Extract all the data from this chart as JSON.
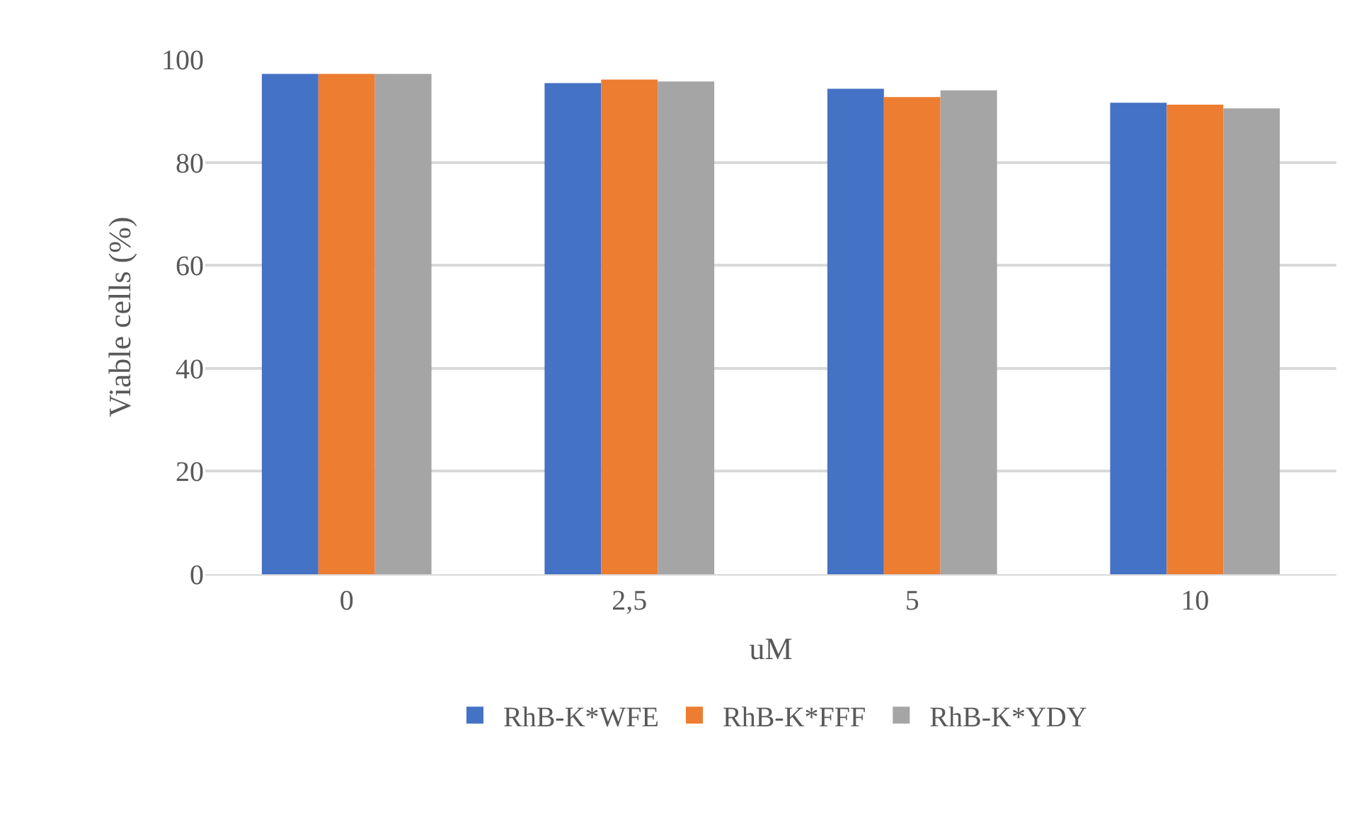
{
  "chart_data": {
    "type": "bar",
    "xlabel": "uM",
    "ylabel": "Viable cells (%)",
    "categories": [
      "0",
      "2,5",
      "5",
      "10"
    ],
    "series": [
      {
        "name": "RhB-K*WFE",
        "color": "#4472c4",
        "values": [
          97.2,
          95.4,
          94.3,
          91.6
        ]
      },
      {
        "name": "RhB-K*FFF",
        "color": "#ed7d31",
        "values": [
          97.2,
          96.1,
          92.7,
          91.2
        ]
      },
      {
        "name": "RhB-K*YDY",
        "color": "#a5a5a5",
        "values": [
          97.2,
          95.7,
          94.0,
          90.5
        ]
      }
    ],
    "ylim": [
      0,
      100
    ],
    "yticks": [
      0,
      20,
      40,
      60,
      80,
      100
    ],
    "grid": "y",
    "legend": "bottom"
  }
}
